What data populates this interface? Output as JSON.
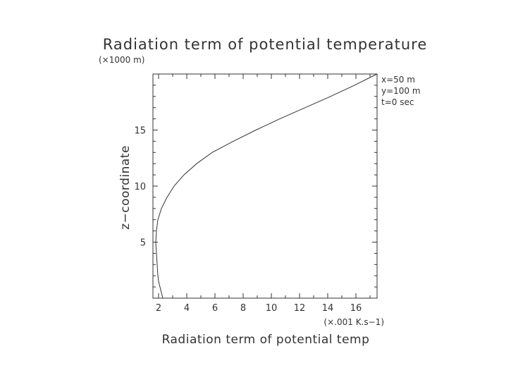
{
  "chart_data": {
    "type": "line",
    "title": "Radiation term of potential temperature",
    "xlabel": "Radiation term of potential temp",
    "ylabel": "z−coordinate",
    "x_multiplier_label": "(×.001 K.s−1)",
    "y_multiplier_label": "(×1000 m)",
    "xlim": [
      1.6,
      17.5
    ],
    "ylim": [
      0,
      20
    ],
    "x_ticks": [
      2,
      4,
      6,
      8,
      10,
      12,
      14,
      16
    ],
    "y_ticks": [
      5,
      10,
      15
    ],
    "annotations": [
      "x=50 m",
      "y=100 m",
      "t=0 sec"
    ],
    "grid": false,
    "series": [
      {
        "x": [
          2.3,
          2.2,
          2.1,
          2.0,
          1.95,
          1.9,
          1.85,
          1.8,
          1.85,
          1.95,
          2.2,
          2.6,
          3.1,
          3.8,
          4.7,
          5.8,
          7.3,
          8.9,
          10.6,
          12.4,
          14.2,
          15.9,
          17.5
        ],
        "y": [
          0.0,
          0.5,
          1.0,
          1.5,
          2.0,
          3.0,
          4.0,
          5.0,
          6.0,
          7.0,
          8.0,
          9.0,
          10.0,
          11.0,
          12.0,
          13.0,
          14.0,
          15.0,
          16.0,
          17.0,
          18.0,
          19.0,
          20.0
        ]
      }
    ]
  }
}
